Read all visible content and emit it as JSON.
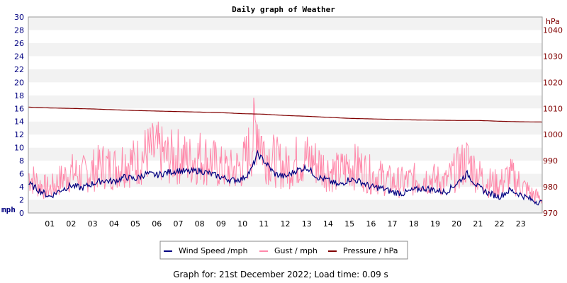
{
  "footer": "Graph for: 21st December 2022; Load time: 0.09 s",
  "chart_data": {
    "type": "line",
    "title": "Daily graph of Weather",
    "left_axis": {
      "unit_label": "mph",
      "range": [
        0,
        30
      ],
      "ticks": [
        "0",
        "2",
        "4",
        "6",
        "8",
        "10",
        "12",
        "14",
        "16",
        "18",
        "20",
        "22",
        "24",
        "26",
        "28",
        "30"
      ],
      "color": "#000080"
    },
    "right_axis": {
      "unit_label": "hPa",
      "range": [
        970,
        1045
      ],
      "ticks": [
        "970",
        "980",
        "990",
        "1000",
        "1010",
        "1020",
        "1030",
        "1040"
      ],
      "color": "#800000"
    },
    "x_axis": {
      "range_hours": [
        0,
        24
      ],
      "ticks": [
        "01",
        "02",
        "03",
        "04",
        "05",
        "06",
        "07",
        "08",
        "09",
        "10",
        "11",
        "12",
        "13",
        "14",
        "15",
        "16",
        "17",
        "18",
        "19",
        "20",
        "21",
        "22",
        "23"
      ]
    },
    "grid": "horizontal alternating bands",
    "legend_position": "bottom",
    "series": [
      {
        "name": "Wind Speed /mph",
        "color": "#000080",
        "axis": "left",
        "hours": [
          0,
          0.5,
          1,
          1.5,
          2,
          2.5,
          3,
          3.5,
          4,
          4.5,
          5,
          5.5,
          6,
          6.5,
          7,
          7.5,
          8,
          8.5,
          9,
          9.5,
          10,
          10.4,
          10.7,
          11,
          11.5,
          12,
          12.5,
          13,
          13.5,
          14,
          14.5,
          15,
          15.5,
          16,
          16.5,
          17,
          17.5,
          18,
          18.5,
          19,
          19.5,
          20,
          20.5,
          21,
          21.5,
          22,
          22.5,
          23,
          23.5,
          24
        ],
        "values": [
          4.5,
          3.5,
          2.5,
          3.5,
          4.2,
          3.8,
          4.5,
          5.0,
          4.8,
          5.5,
          5.2,
          6.0,
          5.8,
          6.2,
          6.5,
          6.3,
          6.5,
          6.0,
          5.5,
          5.0,
          5.2,
          6.5,
          9.0,
          8.0,
          6.0,
          5.5,
          6.5,
          7.0,
          5.5,
          5.0,
          4.2,
          5.2,
          4.8,
          4.0,
          3.8,
          3.2,
          3.0,
          3.5,
          3.8,
          3.5,
          3.2,
          4.5,
          6.0,
          4.0,
          3.0,
          2.5,
          3.5,
          2.8,
          2.0,
          1.5
        ]
      },
      {
        "name": "Gust / mph",
        "color": "#ff88aa",
        "axis": "left",
        "hours": [
          0,
          0.5,
          1,
          1.5,
          2,
          2.5,
          3,
          3.5,
          4,
          4.5,
          5,
          5.5,
          6,
          6.5,
          7,
          7.5,
          8,
          8.5,
          9,
          9.5,
          10,
          10.4,
          10.7,
          11,
          11.5,
          12,
          12.5,
          13,
          13.5,
          14,
          14.5,
          15,
          15.5,
          16,
          16.5,
          17,
          17.5,
          18,
          18.5,
          19,
          19.5,
          20,
          20.5,
          21,
          21.5,
          22,
          22.5,
          23,
          23.5,
          24
        ],
        "values": [
          8.0,
          6.0,
          5.0,
          7.0,
          8.5,
          8.0,
          9.0,
          10.0,
          9.5,
          11.0,
          10.5,
          12.5,
          13.0,
          11.5,
          12.0,
          11.0,
          12.0,
          11.0,
          9.5,
          9.0,
          10.0,
          14.0,
          19.5,
          13.0,
          11.0,
          9.5,
          11.0,
          11.5,
          10.5,
          9.0,
          8.5,
          10.0,
          9.5,
          8.0,
          7.5,
          6.5,
          6.5,
          7.0,
          7.5,
          7.0,
          6.5,
          9.0,
          11.0,
          8.0,
          6.5,
          6.0,
          8.0,
          6.0,
          4.0,
          3.0
        ]
      },
      {
        "name": "Pressure / hPa",
        "color": "#800000",
        "axis": "right",
        "hours": [
          0,
          1,
          2,
          3,
          4,
          5,
          6,
          7,
          8,
          9,
          10,
          11,
          12,
          13,
          14,
          15,
          16,
          17,
          18,
          19,
          20,
          21,
          22,
          23,
          24
        ],
        "values": [
          1010.5,
          1010.2,
          1010.0,
          1009.8,
          1009.5,
          1009.2,
          1009.0,
          1008.8,
          1008.6,
          1008.4,
          1008.0,
          1007.8,
          1007.3,
          1007.0,
          1006.6,
          1006.2,
          1006.0,
          1005.8,
          1005.6,
          1005.5,
          1005.4,
          1005.4,
          1005.1,
          1004.9,
          1004.8
        ]
      }
    ]
  }
}
